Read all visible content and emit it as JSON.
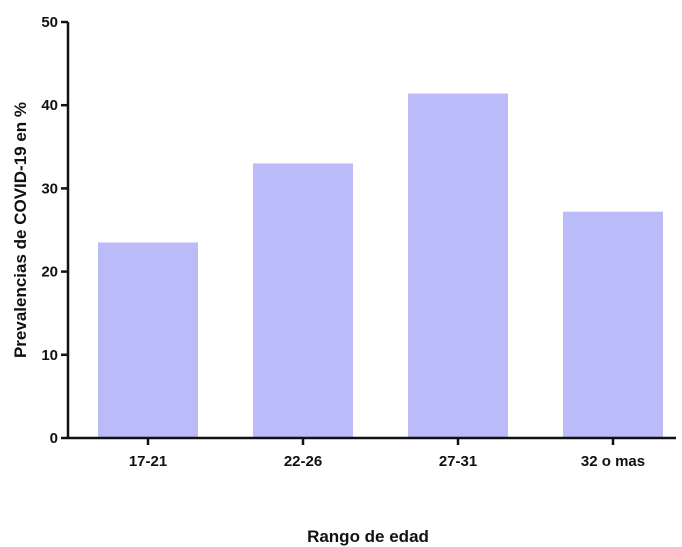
{
  "chart_data": {
    "type": "bar",
    "title": "",
    "xlabel": "Rango de edad",
    "ylabel": "Prevalencias de COVID-19 en %",
    "categories": [
      "17-21",
      "22-26",
      "27-31",
      "32 o mas"
    ],
    "values": [
      23.5,
      33.0,
      41.4,
      27.2
    ],
    "ylim": [
      0,
      50
    ],
    "yticks": [
      0,
      10,
      20,
      30,
      40,
      50
    ],
    "grid": false,
    "legend": "none",
    "bar_color": "#BBBBFA",
    "axis_color": "#111111"
  }
}
